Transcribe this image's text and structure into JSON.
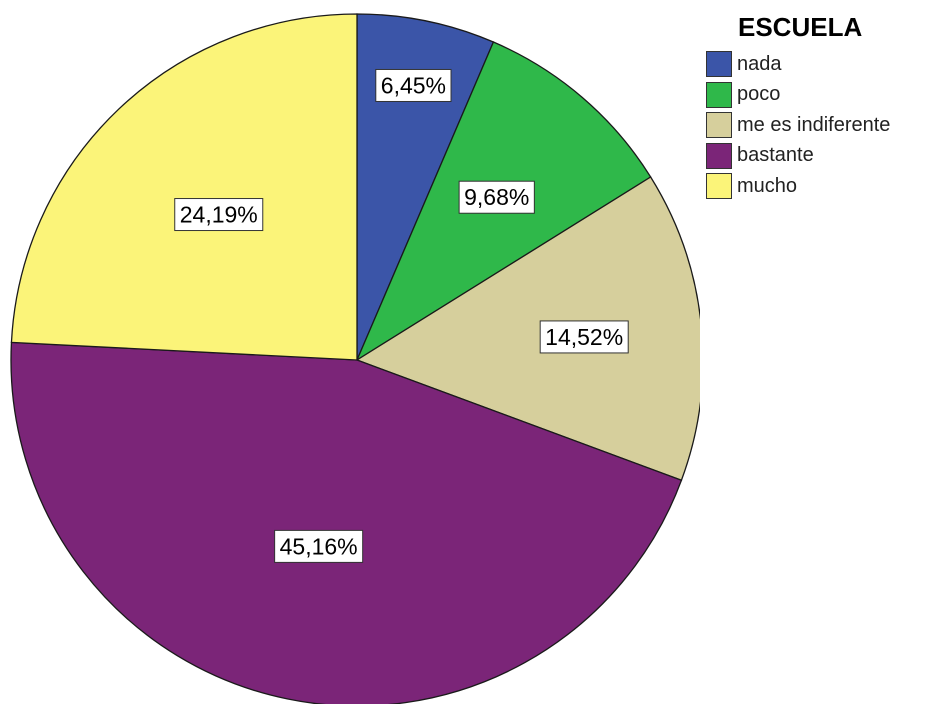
{
  "chart_data": {
    "type": "pie",
    "legend_title": "ESCUELA",
    "legend_position": "top-right",
    "categories": [
      "nada",
      "poco",
      "me es indiferente",
      "bastante",
      "mucho"
    ],
    "values": [
      6.45,
      9.68,
      14.52,
      45.16,
      24.19
    ],
    "labels": [
      "6,45%",
      "9,68%",
      "14,52%",
      "45,16%",
      "24,19%"
    ],
    "colors": [
      "#3b55a8",
      "#2fb84a",
      "#d6cf9c",
      "#7b2578",
      "#fbf479"
    ]
  }
}
